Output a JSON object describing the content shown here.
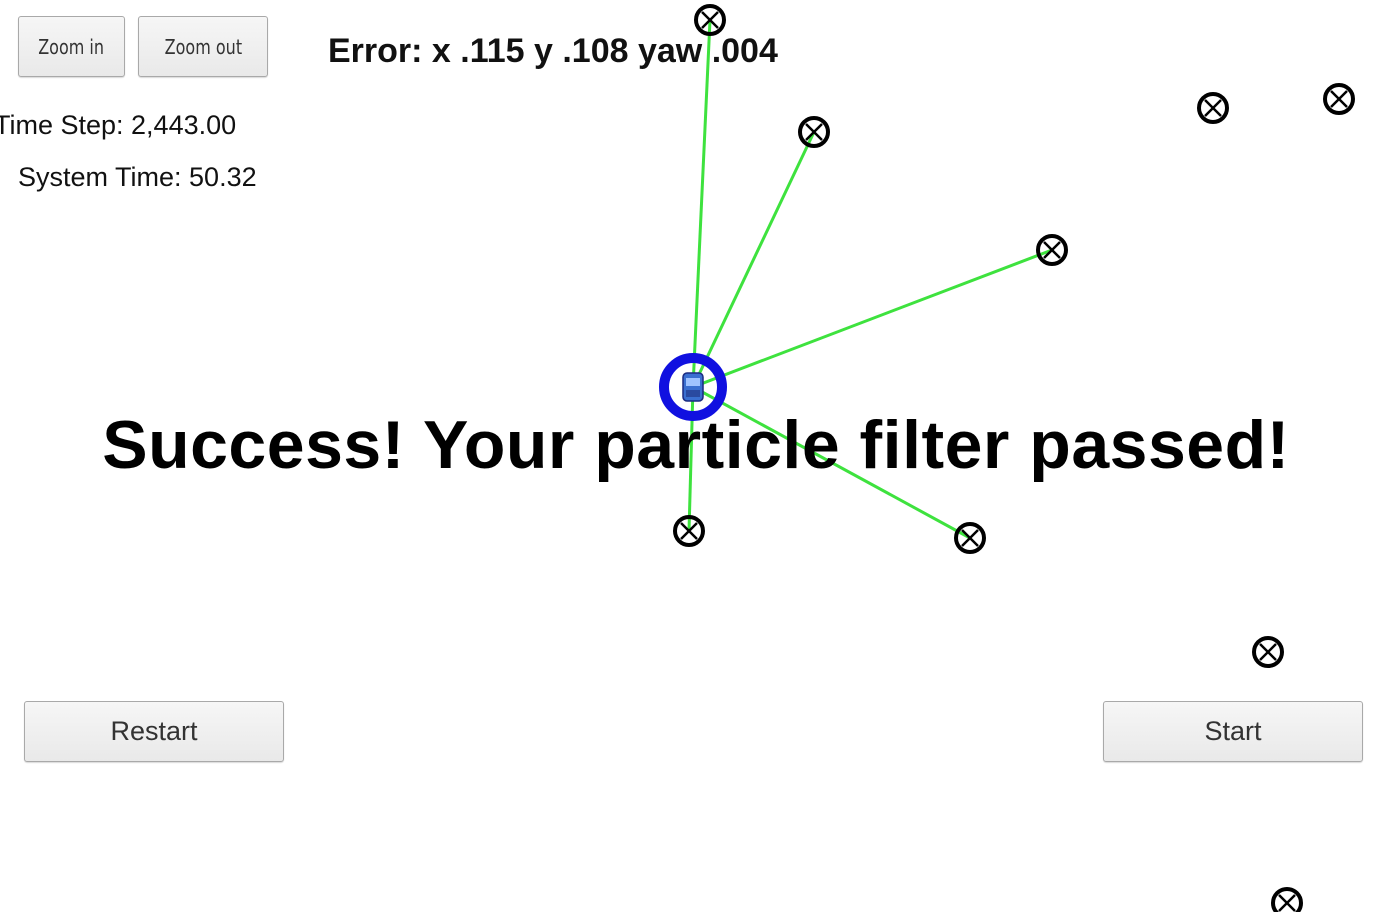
{
  "toolbar": {
    "zoom_in_label": "Zoom in",
    "zoom_out_label": "Zoom out"
  },
  "status": {
    "time_step": "Time Step: 2,443.00",
    "system_time": "System Time: 50.32",
    "error": "Error: x .115 y .108 yaw .004"
  },
  "message": "Success! Your particle filter passed!",
  "controls": {
    "restart_label": "Restart",
    "start_label": "Start"
  },
  "colors": {
    "observation_line": "#3ee23e",
    "vehicle": "#1010e0",
    "landmark": "#000000",
    "background": "#ffffff"
  },
  "icons": {
    "landmark": "circled-x-icon",
    "vehicle": "car-icon"
  }
}
